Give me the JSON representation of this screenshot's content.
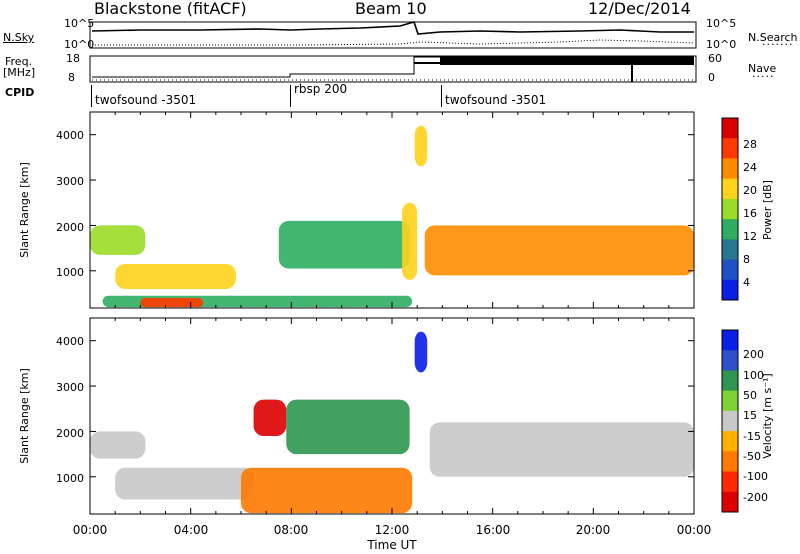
{
  "header": {
    "station": "Blackstone (fitACF)",
    "beam": "Beam 10",
    "date": "12/Dec/2014"
  },
  "params_panel": {
    "nsky_label": "N.Sky",
    "nsearch_label": "N.Search",
    "nsky_ticks": [
      "10^5",
      "10^0"
    ],
    "nsearch_ticks": [
      "10^5",
      "10^0"
    ],
    "freq_label": "Freq.",
    "freq_unit": "[MHz]",
    "freq_ticks": [
      "18",
      "8"
    ],
    "nave_label": "Nave",
    "nave_ticks": [
      "60",
      "0"
    ],
    "cpid_label": "CPID"
  },
  "cpid_segments": [
    {
      "label": "twofsound -3501"
    },
    {
      "label": "rbsp 200"
    },
    {
      "label": "twofsound -3501"
    }
  ],
  "x_axis": {
    "label": "Time UT",
    "ticks": [
      "00:00",
      "04:00",
      "08:00",
      "12:00",
      "16:00",
      "20:00",
      "00:00"
    ]
  },
  "power_panel": {
    "ylabel": "Slant Range [km]",
    "yticks": [
      "4000",
      "3000",
      "2000",
      "1000"
    ],
    "colorbar_label": "Power [dB]",
    "colorbar_ticks": [
      "28",
      "24",
      "20",
      "16",
      "12",
      "8",
      "4"
    ],
    "colorbar_colors": [
      "#d80000",
      "#ff3a00",
      "#ff8c00",
      "#ffd21c",
      "#9adc28",
      "#2fae62",
      "#247a8c",
      "#2150c6",
      "#0a1ee6"
    ]
  },
  "velocity_panel": {
    "ylabel": "Slant Range [km]",
    "yticks": [
      "4000",
      "3000",
      "2000",
      "1000"
    ],
    "colorbar_label": "Velocity [m s⁻¹]",
    "colorbar_ticks": [
      "200",
      "100",
      "50",
      "15",
      "-15",
      "-50",
      "-100",
      "-200"
    ],
    "colorbar_colors": [
      "#0a1ee6",
      "#2f50c8",
      "#2e9650",
      "#7fd236",
      "#c8c8c8",
      "#ffb000",
      "#ff7a00",
      "#ff2a00",
      "#dc0000"
    ]
  },
  "chart_data": {
    "type": "heatmap",
    "title": "Blackstone (fitACF) Beam 10 12/Dec/2014",
    "xlabel": "Time UT",
    "ylabel": "Slant Range [km]",
    "x_range_hours": [
      0,
      24
    ],
    "ylim": [
      180,
      4500
    ],
    "power_regions": [
      {
        "t": [
          0.0,
          2.2
        ],
        "r": [
          1350,
          2000
        ],
        "power_db": 18
      },
      {
        "t": [
          1.0,
          5.8
        ],
        "r": [
          600,
          1150
        ],
        "power_db": 20
      },
      {
        "t": [
          0.5,
          12.8
        ],
        "r": [
          200,
          450
        ],
        "power_db": 12
      },
      {
        "t": [
          2.0,
          4.5
        ],
        "r": [
          200,
          400
        ],
        "power_db": 26
      },
      {
        "t": [
          7.5,
          12.7
        ],
        "r": [
          1050,
          2100
        ],
        "power_db": 12
      },
      {
        "t": [
          12.4,
          13.0
        ],
        "r": [
          800,
          2500
        ],
        "power_db": 20
      },
      {
        "t": [
          12.9,
          13.4
        ],
        "r": [
          3300,
          4200
        ],
        "power_db": 20
      },
      {
        "t": [
          13.3,
          24.0
        ],
        "r": [
          900,
          2000
        ],
        "power_db": 22
      }
    ],
    "velocity_regions": [
      {
        "t": [
          0.0,
          2.2
        ],
        "r": [
          1400,
          2000
        ],
        "velocity": 0
      },
      {
        "t": [
          1.0,
          6.5
        ],
        "r": [
          500,
          1200
        ],
        "velocity": 0
      },
      {
        "t": [
          6.5,
          7.8
        ],
        "r": [
          1900,
          2700
        ],
        "velocity": -200
      },
      {
        "t": [
          7.8,
          12.7
        ],
        "r": [
          1500,
          2700
        ],
        "velocity": 50
      },
      {
        "t": [
          6.0,
          12.8
        ],
        "r": [
          200,
          1200
        ],
        "velocity": -50
      },
      {
        "t": [
          12.9,
          13.4
        ],
        "r": [
          3300,
          4200
        ],
        "velocity": 200
      },
      {
        "t": [
          13.5,
          24.0
        ],
        "r": [
          1000,
          2200
        ],
        "velocity": 0
      }
    ]
  }
}
